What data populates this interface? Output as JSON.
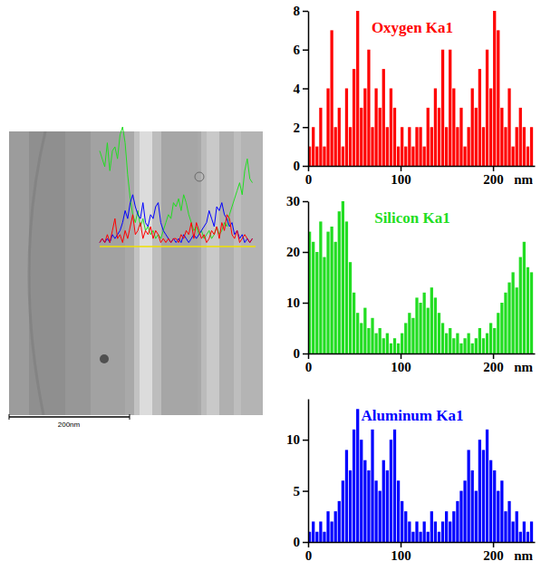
{
  "chart_data": [
    {
      "type": "bar",
      "title": "Oxygen Ka1",
      "color": "#ff0000",
      "x_label": "nm",
      "x": [
        0,
        4,
        8,
        12,
        16,
        20,
        24,
        28,
        32,
        36,
        40,
        44,
        48,
        52,
        56,
        60,
        64,
        68,
        72,
        76,
        80,
        84,
        88,
        92,
        96,
        100,
        104,
        108,
        112,
        116,
        120,
        124,
        128,
        132,
        136,
        140,
        144,
        148,
        152,
        156,
        160,
        164,
        168,
        172,
        176,
        180,
        184,
        188,
        192,
        196,
        200,
        204,
        208,
        212,
        216,
        220,
        224,
        228,
        232,
        236,
        240
      ],
      "values": [
        1,
        2,
        1,
        3,
        1,
        4,
        7,
        2,
        3,
        1,
        4,
        2,
        5,
        8,
        3,
        4,
        6,
        2,
        4,
        3,
        5,
        2,
        4,
        3,
        1,
        2,
        1,
        2,
        1,
        2,
        2,
        1,
        3,
        2,
        4,
        3,
        6,
        2,
        6,
        4,
        2,
        3,
        1,
        2,
        4,
        3,
        5,
        2,
        6,
        4,
        8,
        7,
        3,
        2,
        4,
        1,
        2,
        3,
        2,
        1,
        2
      ],
      "xlim": [
        0,
        245
      ],
      "xticks": [
        0,
        100,
        200
      ],
      "ylim": [
        0,
        8
      ],
      "yticks": [
        0,
        2,
        4,
        6,
        8
      ]
    },
    {
      "type": "bar",
      "title": "Silicon Ka1",
      "color": "#22dd22",
      "x_label": "nm",
      "x": [
        0,
        4,
        8,
        12,
        16,
        20,
        24,
        28,
        32,
        36,
        40,
        44,
        48,
        52,
        56,
        60,
        64,
        68,
        72,
        76,
        80,
        84,
        88,
        92,
        96,
        100,
        104,
        108,
        112,
        116,
        120,
        124,
        128,
        132,
        136,
        140,
        144,
        148,
        152,
        156,
        160,
        164,
        168,
        172,
        176,
        180,
        184,
        188,
        192,
        196,
        200,
        204,
        208,
        212,
        216,
        220,
        224,
        228,
        232,
        236,
        240
      ],
      "values": [
        24,
        22,
        20,
        26,
        19,
        24,
        25,
        22,
        28,
        30,
        26,
        18,
        12,
        8,
        6,
        9,
        5,
        7,
        4,
        5,
        3,
        4,
        2,
        3,
        2,
        4,
        6,
        8,
        7,
        11,
        10,
        12,
        9,
        13,
        11,
        8,
        6,
        4,
        5,
        3,
        4,
        2,
        3,
        4,
        2,
        3,
        5,
        3,
        4,
        6,
        5,
        8,
        10,
        12,
        14,
        16,
        13,
        19,
        22,
        17,
        16
      ],
      "xlim": [
        0,
        245
      ],
      "xticks": [
        0,
        100,
        200
      ],
      "ylim": [
        0,
        30
      ],
      "yticks": [
        0,
        10,
        20,
        30
      ]
    },
    {
      "type": "bar",
      "title": "Aluminum Ka1",
      "color": "#0000ff",
      "x_label": "nm",
      "x": [
        0,
        4,
        8,
        12,
        16,
        20,
        24,
        28,
        32,
        36,
        40,
        44,
        48,
        52,
        56,
        60,
        64,
        68,
        72,
        76,
        80,
        84,
        88,
        92,
        96,
        100,
        104,
        108,
        112,
        116,
        120,
        124,
        128,
        132,
        136,
        140,
        144,
        148,
        152,
        156,
        160,
        164,
        168,
        172,
        176,
        180,
        184,
        188,
        192,
        196,
        200,
        204,
        208,
        212,
        216,
        220,
        224,
        228,
        232,
        236,
        240
      ],
      "values": [
        1,
        2,
        1,
        2,
        1,
        3,
        2,
        3,
        4,
        6,
        9,
        7,
        11,
        13,
        10,
        8,
        7,
        11,
        6,
        5,
        8,
        7,
        10,
        11,
        6,
        4,
        3,
        2,
        1,
        2,
        1,
        2,
        1,
        3,
        2,
        1,
        2,
        3,
        2,
        3,
        4,
        5,
        6,
        9,
        7,
        5,
        10,
        9,
        11,
        8,
        7,
        5,
        6,
        3,
        4,
        2,
        3,
        1,
        2,
        1,
        2
      ],
      "xlim": [
        0,
        245
      ],
      "xticks": [
        0,
        100,
        200
      ],
      "ylim": [
        0,
        14
      ],
      "yticks": [
        0,
        5,
        10
      ]
    }
  ],
  "micrograph": {
    "scale_bar_label": "200nm"
  }
}
